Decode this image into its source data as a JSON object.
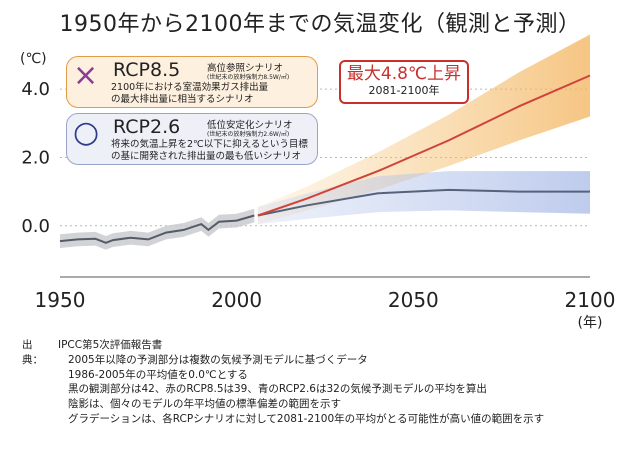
{
  "title": "1950年から2100年までの気温変化（観測と予測）",
  "chart_data": {
    "type": "line",
    "y_unit": "(℃)",
    "x_unit": "(年)",
    "xlim": [
      1950,
      2100
    ],
    "ylim": [
      -1.5,
      5.0
    ],
    "x_ticks": [
      "1950",
      "2000",
      "2050",
      "2100"
    ],
    "y_ticks": [
      "0.0",
      "2.0",
      "4.0"
    ],
    "grid": "horizontal dotted at y ticks",
    "series": [
      {
        "name": "観測",
        "color": "#555b66",
        "x": [
          1950,
          1955,
          1960,
          1963,
          1965,
          1970,
          1975,
          1980,
          1985,
          1990,
          1992,
          1995,
          2000,
          2005
        ],
        "values": [
          -0.45,
          -0.4,
          -0.38,
          -0.5,
          -0.42,
          -0.35,
          -0.4,
          -0.2,
          -0.12,
          0.05,
          -0.12,
          0.12,
          0.15,
          0.3
        ]
      },
      {
        "name": "RCP8.5",
        "color": "#d0433a",
        "x": [
          2006,
          2020,
          2040,
          2060,
          2080,
          2100
        ],
        "values": [
          0.3,
          0.8,
          1.6,
          2.5,
          3.5,
          4.4
        ],
        "band_low": [
          0.05,
          0.45,
          1.05,
          1.75,
          2.5,
          3.2
        ],
        "band_high": [
          0.55,
          1.15,
          2.15,
          3.25,
          4.5,
          5.6
        ]
      },
      {
        "name": "RCP2.6",
        "color": "#55627a",
        "x": [
          2006,
          2020,
          2040,
          2060,
          2080,
          2100
        ],
        "values": [
          0.3,
          0.6,
          0.95,
          1.05,
          1.0,
          1.0
        ],
        "band_low": [
          0.05,
          0.2,
          0.4,
          0.45,
          0.4,
          0.35
        ],
        "band_high": [
          0.55,
          0.95,
          1.45,
          1.6,
          1.6,
          1.6
        ]
      }
    ],
    "hist_band_halfwidth": 0.2
  },
  "legend": {
    "rcp85": {
      "marker": "×",
      "marker_color": "#8a3d96",
      "name": "RCP8.5",
      "sub": "高位参照シナリオ",
      "note": "(世紀末の放射強制力8.5W/㎡)",
      "desc": [
        "2100年における室温効果ガス排出量",
        "の最大排出量に相当するシナリオ"
      ]
    },
    "rcp26": {
      "marker": "○",
      "marker_color": "#2e3a8c",
      "name": "RCP2.6",
      "sub": "低位安定化シナリオ",
      "note": "(世紀末の放射強制力2.6W/㎡)",
      "desc": [
        "将来の気温上昇を2℃以下に抑えるという目標",
        "の基に開発された排出量の最も低いシナリオ"
      ]
    }
  },
  "highlight": {
    "main": "最大4.8℃上昇",
    "sub": "2081-2100年",
    "color": "#c9302c"
  },
  "source": {
    "label": "出典：",
    "lines": [
      "IPCC第5次評価報告書",
      "2005年以降の予測部分は複数の気候予測モデルに基づくデータ",
      "1986-2005年の平均値を0.0℃とする",
      "黒の観測部分は42、赤のRCP8.5は39、青のRCP2.6は32の気候予測モデルの平均を算出",
      "陰影は、個々のモデルの年平均値の標準偏差の範囲を示す",
      "グラデーションは、各RCPシナリオに対して2081-2100年の平均がとる可能性が高い値の範囲を示す"
    ]
  }
}
